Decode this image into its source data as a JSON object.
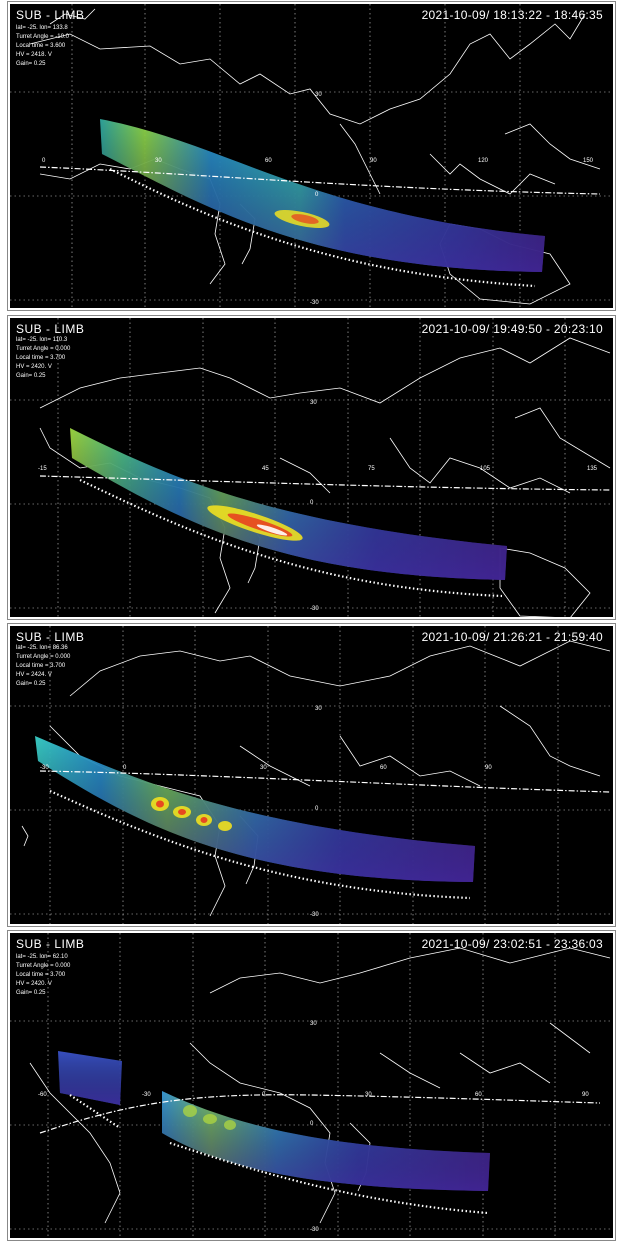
{
  "panels": [
    {
      "title": "SUB - LIMB",
      "time_range": "2021-10-09/ 18:13:22 - 18:46:35",
      "meta": {
        "latlon": "lat= -25.  lon= 133.8",
        "turret": "Turret Angle = -10.0",
        "local_time": "Local time = 3.600",
        "hv": "HV = 2418. V",
        "gain": "Gain= 0.25"
      },
      "lon_labels": [
        "0",
        "30",
        "60",
        "90",
        "120",
        "150"
      ],
      "lat_labels": [
        "30",
        "0",
        "-30"
      ]
    },
    {
      "title": "SUB - LIMB",
      "time_range": "2021-10-09/ 19:49:50 - 20:23:10",
      "meta": {
        "latlon": "lat= -25.  lon= 110.3",
        "turret": "Turret Angle = 0.000",
        "local_time": "Local time = 3.700",
        "hv": "HV = 2420. V",
        "gain": "Gain= 0.25"
      },
      "lon_labels": [
        "-15",
        "45",
        "75",
        "105",
        "135"
      ],
      "lat_labels": [
        "30",
        "0",
        "-30"
      ]
    },
    {
      "title": "SUB - LIMB",
      "time_range": "2021-10-09/ 21:26:21 - 21:59:40",
      "meta": {
        "latlon": "lat= -25.  lon= 86.36",
        "turret": "Turret Angle = 0.000",
        "local_time": "Local time = 3.700",
        "hv": "HV = 2424. V",
        "gain": "Gain= 0.25"
      },
      "lon_labels": [
        "-30",
        "0",
        "30",
        "60",
        "90"
      ],
      "lat_labels": [
        "30",
        "0",
        "-30"
      ]
    },
    {
      "title": "SUB - LIMB",
      "time_range": "2021-10-09/ 23:02:51 - 23:36:03",
      "meta": {
        "latlon": "lat= -25.  lon= 62.10",
        "turret": "Turret Angle = 0.000",
        "local_time": "Local time = 3.700",
        "hv": "HV = 2420. V",
        "gain": "Gain= 0.25"
      },
      "lon_labels": [
        "-60",
        "-30",
        "0",
        "30",
        "60",
        "90"
      ],
      "lat_labels": [
        "30",
        "0",
        "-30"
      ]
    }
  ]
}
